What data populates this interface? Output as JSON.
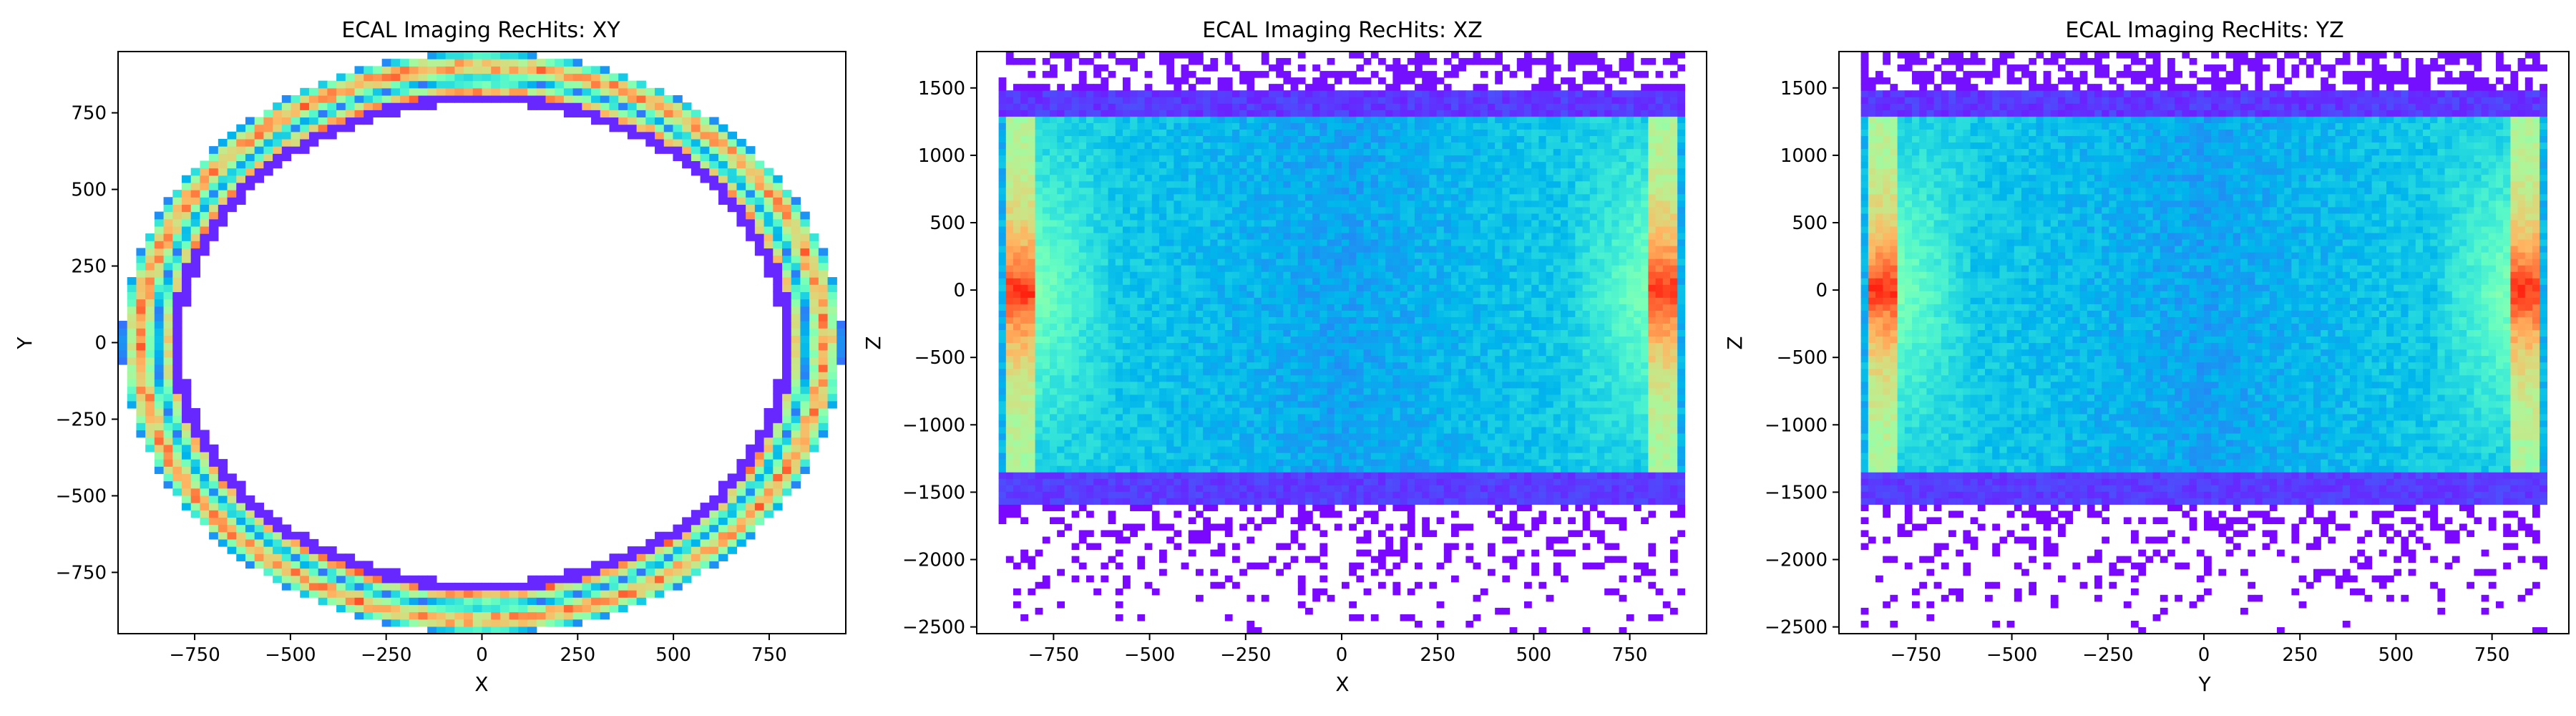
{
  "figure": {
    "background": "#ffffff",
    "colormap": "rainbow"
  },
  "chart_data": [
    {
      "type": "heatmap",
      "title": "ECAL Imaging RecHits: XY",
      "xlabel": "X",
      "ylabel": "Y",
      "xlim": [
        -950,
        950
      ],
      "ylim": [
        -950,
        950
      ],
      "xticks": [
        -750,
        -500,
        -250,
        0,
        250,
        500,
        750
      ],
      "yticks": [
        -750,
        -500,
        -250,
        0,
        250,
        500,
        750
      ],
      "xtick_labels": [
        "−750",
        "−500",
        "−250",
        "0",
        "250",
        "500",
        "750"
      ],
      "ytick_labels": [
        "−750",
        "−500",
        "−250",
        "0",
        "250",
        "500",
        "750"
      ],
      "pattern": "ring",
      "ring": {
        "inner_radius": 780,
        "outer_radius": 940,
        "inner_y_radius": 780,
        "outer_y_radius": 950
      },
      "bins": 80
    },
    {
      "type": "heatmap",
      "title": "ECAL Imaging RecHits: XZ",
      "xlabel": "X",
      "ylabel": "Z",
      "xlim": [
        -950,
        950
      ],
      "ylim": [
        -2550,
        1770
      ],
      "xticks": [
        -750,
        -500,
        -250,
        0,
        250,
        500,
        750
      ],
      "yticks": [
        -2500,
        -2000,
        -1500,
        -1000,
        -500,
        0,
        500,
        1000,
        1500
      ],
      "xtick_labels": [
        "−750",
        "−500",
        "−250",
        "0",
        "250",
        "500",
        "750"
      ],
      "ytick_labels": [
        "−2500",
        "−2000",
        "−1500",
        "−1000",
        "−500",
        "0",
        "500",
        "1000",
        "1500"
      ],
      "pattern": "barrel",
      "barrel": {
        "edge": 840,
        "z_top": 1280,
        "z_bottom": -1350
      },
      "bins": 100
    },
    {
      "type": "heatmap",
      "title": "ECAL Imaging RecHits: YZ",
      "xlabel": "Y",
      "ylabel": "Z",
      "xlim": [
        -950,
        950
      ],
      "ylim": [
        -2550,
        1770
      ],
      "xticks": [
        -750,
        -500,
        -250,
        0,
        250,
        500,
        750
      ],
      "yticks": [
        -2500,
        -2000,
        -1500,
        -1000,
        -500,
        0,
        500,
        1000,
        1500
      ],
      "xtick_labels": [
        "−750",
        "−500",
        "−250",
        "0",
        "250",
        "500",
        "750"
      ],
      "ytick_labels": [
        "−2500",
        "−2000",
        "−1500",
        "−1000",
        "−500",
        "0",
        "500",
        "1000",
        "1500"
      ],
      "pattern": "barrel",
      "barrel": {
        "edge": 840,
        "z_top": 1280,
        "z_bottom": -1350
      },
      "bins": 100
    }
  ]
}
